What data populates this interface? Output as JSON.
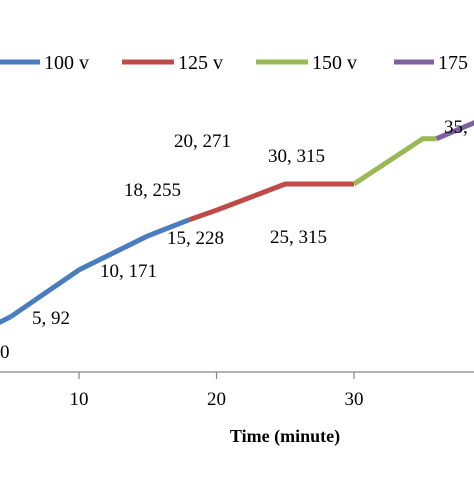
{
  "chart_data": {
    "type": "line",
    "title": "",
    "xlabel": "Time (minute)",
    "ylabel": "",
    "xlim": [
      5,
      40
    ],
    "ylim": [
      0,
      400
    ],
    "x_ticks": [
      "10",
      "20",
      "30"
    ],
    "grid": false,
    "legend_position": "top",
    "series": [
      {
        "name": "100 v",
        "color": "#4a7dbf",
        "x": [
          5,
          10,
          15,
          18
        ],
        "y": [
          92,
          171,
          228,
          255
        ]
      },
      {
        "name": "125 v",
        "color": "#be4b48",
        "x": [
          18,
          20,
          25,
          30
        ],
        "y": [
          255,
          271,
          315,
          315
        ]
      },
      {
        "name": "150 v",
        "color": "#98b954",
        "x": [
          30,
          35,
          36
        ],
        "y": [
          315,
          391,
          391
        ]
      },
      {
        "name": "175",
        "color": "#7d60a0",
        "x": [
          36,
          40
        ],
        "y": [
          391,
          430
        ]
      }
    ],
    "point_labels": [
      {
        "text": "0",
        "x": 5,
        "y": 92
      },
      {
        "text": "5, 92",
        "x": 5,
        "y": 92
      },
      {
        "text": "10, 171",
        "x": 10,
        "y": 171
      },
      {
        "text": "15, 228",
        "x": 15,
        "y": 228
      },
      {
        "text": "18, 255",
        "x": 18,
        "y": 255
      },
      {
        "text": "20, 271",
        "x": 20,
        "y": 271
      },
      {
        "text": "25, 315",
        "x": 25,
        "y": 315
      },
      {
        "text": "30, 315",
        "x": 30,
        "y": 315
      },
      {
        "text": "35,",
        "x": 35,
        "y": 391
      }
    ]
  }
}
